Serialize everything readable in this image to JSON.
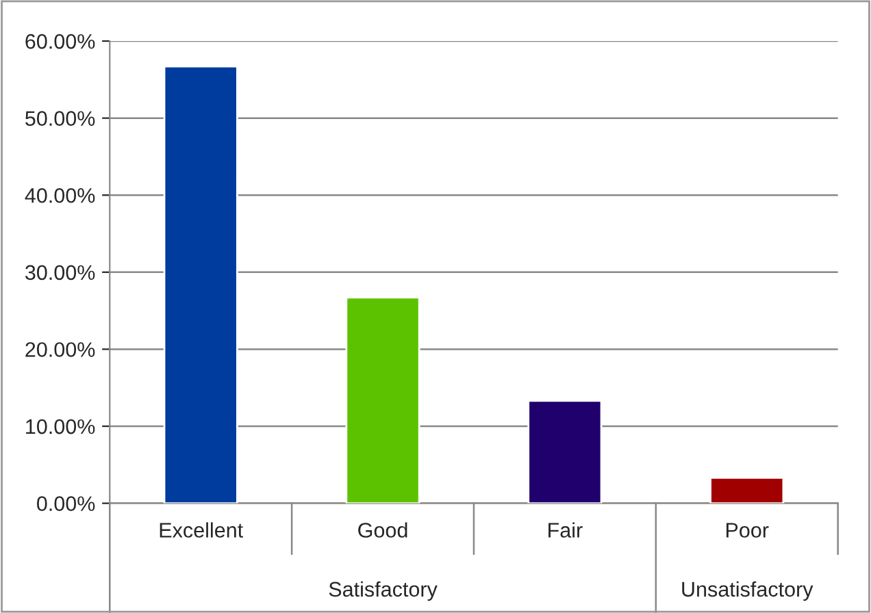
{
  "chart_data": {
    "type": "bar",
    "categories": [
      "Excellent",
      "Good",
      "Fair",
      "Poor"
    ],
    "values": [
      56.7,
      26.7,
      13.3,
      3.3
    ],
    "colors": [
      "#003c9e",
      "#5cc200",
      "#20006c",
      "#a00000"
    ],
    "ylim": [
      0,
      60
    ],
    "yticks": [
      {
        "value": 0,
        "label": "0.00%"
      },
      {
        "value": 10,
        "label": "10.00%"
      },
      {
        "value": 20,
        "label": "20.00%"
      },
      {
        "value": 30,
        "label": "30.00%"
      },
      {
        "value": 40,
        "label": "40.00%"
      },
      {
        "value": 50,
        "label": "50.00%"
      },
      {
        "value": 60,
        "label": "60.00%"
      }
    ],
    "grid": "y",
    "annotations": [
      "Satisfactory",
      "Unsatisfactory"
    ]
  }
}
